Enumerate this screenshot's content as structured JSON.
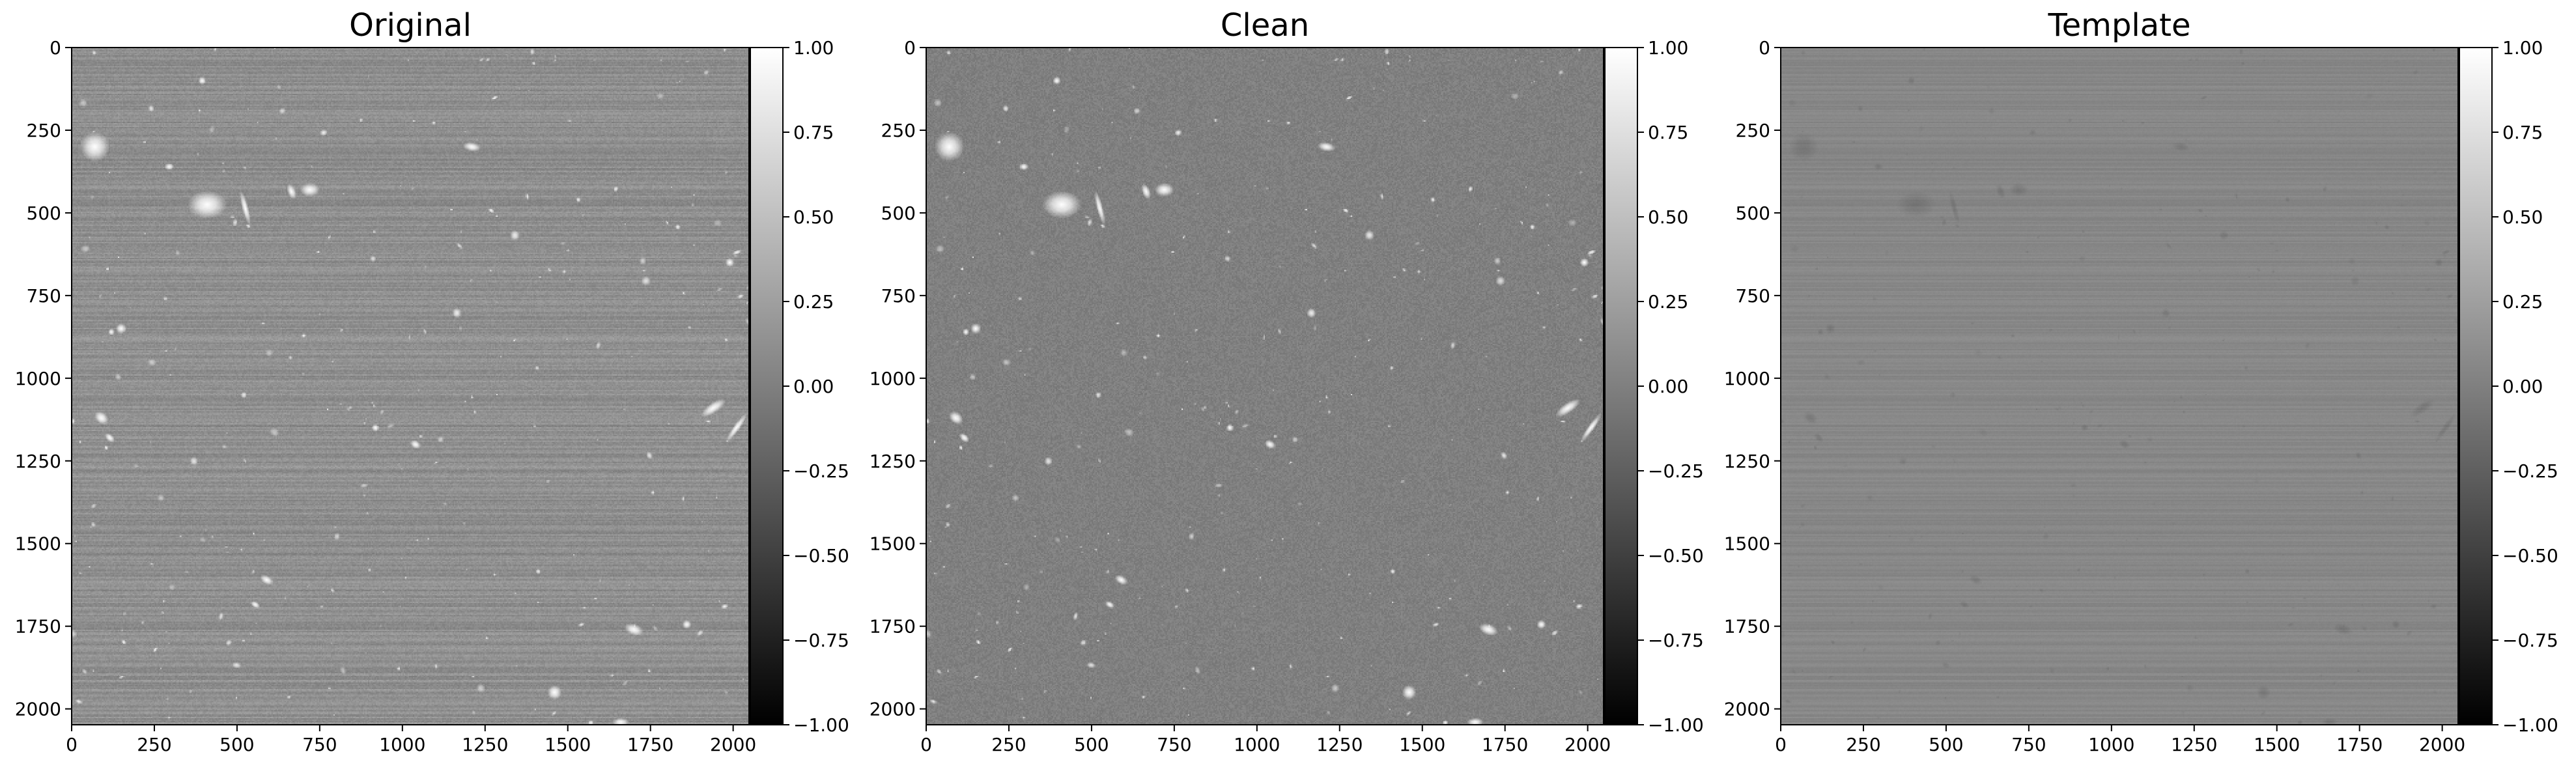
{
  "chart_data": [
    {
      "type": "heatmap",
      "title": "Original",
      "colormap": "gray",
      "background_level": 0.12,
      "noise_amplitude": 0.07,
      "stripe_amplitude": 0.09,
      "source_brightness": 1.0,
      "xlim": [
        0,
        2048
      ],
      "ylim": [
        2048,
        0
      ],
      "x_ticks": [
        0,
        250,
        500,
        750,
        1000,
        1250,
        1500,
        1750,
        2000
      ],
      "y_ticks": [
        0,
        250,
        500,
        750,
        1000,
        1250,
        1500,
        1750,
        2000
      ],
      "colorbar": {
        "range": [
          -1.0,
          1.0
        ],
        "ticks": [
          "1.00",
          "0.75",
          "0.50",
          "0.25",
          "0.00",
          "−0.25",
          "−0.50",
          "−0.75",
          "−1.00"
        ]
      }
    },
    {
      "type": "heatmap",
      "title": "Clean",
      "colormap": "gray",
      "background_level": 0.0,
      "noise_amplitude": 0.08,
      "stripe_amplitude": 0.0,
      "source_brightness": 1.0,
      "xlim": [
        0,
        2048
      ],
      "ylim": [
        2048,
        0
      ],
      "x_ticks": [
        0,
        250,
        500,
        750,
        1000,
        1250,
        1500,
        1750,
        2000
      ],
      "y_ticks": [
        0,
        250,
        500,
        750,
        1000,
        1250,
        1500,
        1750,
        2000
      ],
      "colorbar": {
        "range": [
          -1.0,
          1.0
        ],
        "ticks": [
          "1.00",
          "0.75",
          "0.50",
          "0.25",
          "0.00",
          "−0.25",
          "−0.50",
          "−0.75",
          "−1.00"
        ]
      }
    },
    {
      "type": "heatmap",
      "title": "Template",
      "colormap": "gray",
      "background_level": 0.06,
      "noise_amplitude": 0.015,
      "stripe_amplitude": 0.05,
      "source_brightness": -0.12,
      "xlim": [
        0,
        2048
      ],
      "ylim": [
        2048,
        0
      ],
      "x_ticks": [
        0,
        250,
        500,
        750,
        1000,
        1250,
        1500,
        1750,
        2000
      ],
      "y_ticks": [
        0,
        250,
        500,
        750,
        1000,
        1250,
        1500,
        1750,
        2000
      ],
      "colorbar": {
        "range": [
          -1.0,
          1.0
        ],
        "ticks": [
          "1.00",
          "0.75",
          "0.50",
          "0.25",
          "0.00",
          "−0.25",
          "−0.50",
          "−0.75",
          "−1.00"
        ]
      }
    }
  ],
  "sources": [
    {
      "x": 70,
      "y": 300,
      "r": 45,
      "e": 1.0,
      "a": 0
    },
    {
      "x": 410,
      "y": 475,
      "r": 60,
      "e": 0.7,
      "a": 0
    },
    {
      "x": 720,
      "y": 430,
      "r": 30,
      "e": 0.7,
      "a": 0
    },
    {
      "x": 665,
      "y": 435,
      "r": 25,
      "e": 0.5,
      "a": 70
    },
    {
      "x": 525,
      "y": 485,
      "r": 55,
      "e": 0.18,
      "a": 75
    },
    {
      "x": 1210,
      "y": 300,
      "r": 28,
      "e": 0.5,
      "a": 10
    },
    {
      "x": 1940,
      "y": 1090,
      "r": 45,
      "e": 0.35,
      "a": -35
    },
    {
      "x": 2010,
      "y": 1150,
      "r": 55,
      "e": 0.18,
      "a": -55
    },
    {
      "x": 1700,
      "y": 1760,
      "r": 30,
      "e": 0.55,
      "a": 20
    },
    {
      "x": 1460,
      "y": 1950,
      "r": 22,
      "e": 1.0,
      "a": 0
    },
    {
      "x": 1040,
      "y": 1200,
      "r": 18,
      "e": 0.7,
      "a": 30
    },
    {
      "x": 90,
      "y": 1120,
      "r": 24,
      "e": 0.7,
      "a": 40
    },
    {
      "x": 115,
      "y": 1180,
      "r": 18,
      "e": 0.6,
      "a": 40
    },
    {
      "x": 150,
      "y": 850,
      "r": 16,
      "e": 1.0,
      "a": 0
    },
    {
      "x": 590,
      "y": 1610,
      "r": 22,
      "e": 0.6,
      "a": 30
    },
    {
      "x": 555,
      "y": 1685,
      "r": 16,
      "e": 0.6,
      "a": 30
    },
    {
      "x": 1860,
      "y": 1745,
      "r": 14,
      "e": 1.0,
      "a": 0
    },
    {
      "x": 1660,
      "y": 2040,
      "r": 26,
      "e": 0.5,
      "a": 0
    },
    {
      "x": 1990,
      "y": 650,
      "r": 14,
      "e": 1.0,
      "a": 0
    },
    {
      "x": 120,
      "y": 860,
      "r": 10,
      "e": 1.0,
      "a": 0
    },
    {
      "x": 395,
      "y": 100,
      "r": 12,
      "e": 1.0,
      "a": 0
    },
    {
      "x": 295,
      "y": 360,
      "r": 14,
      "e": 0.8,
      "a": 0
    }
  ]
}
